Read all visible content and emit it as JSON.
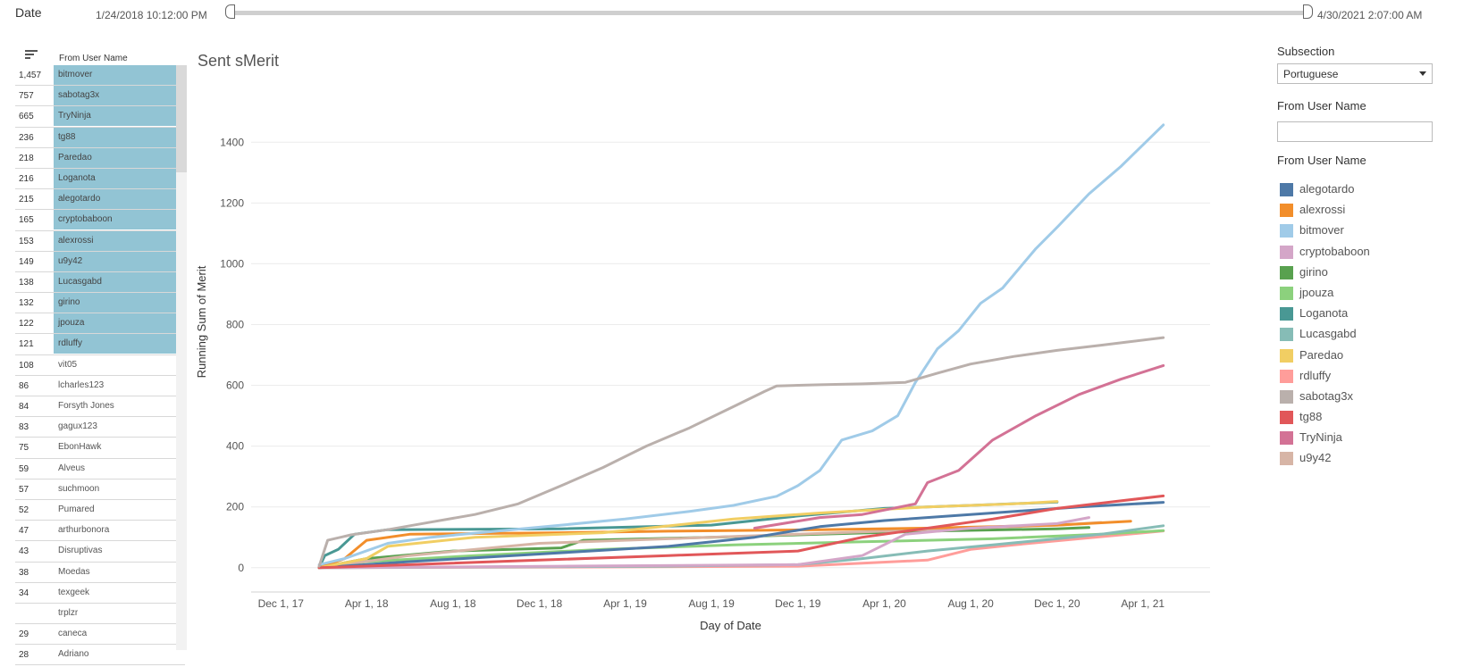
{
  "date_filter": {
    "label": "Date",
    "start": "1/24/2018 10:12:00 PM",
    "end": "4/30/2021 2:07:00 AM"
  },
  "table": {
    "header": "From User Name",
    "rows": [
      {
        "value": "1,457",
        "name": "bitmover",
        "highlighted": true
      },
      {
        "value": "757",
        "name": "sabotag3x",
        "highlighted": true
      },
      {
        "value": "665",
        "name": "TryNinja",
        "highlighted": true
      },
      {
        "value": "236",
        "name": "tg88",
        "highlighted": true
      },
      {
        "value": "218",
        "name": "Paredao",
        "highlighted": true
      },
      {
        "value": "216",
        "name": "Loganota",
        "highlighted": true
      },
      {
        "value": "215",
        "name": "alegotardo",
        "highlighted": true
      },
      {
        "value": "165",
        "name": "cryptobaboon",
        "highlighted": true
      },
      {
        "value": "153",
        "name": "alexrossi",
        "highlighted": true
      },
      {
        "value": "149",
        "name": "u9y42",
        "highlighted": true
      },
      {
        "value": "138",
        "name": "Lucasgabd",
        "highlighted": true
      },
      {
        "value": "132",
        "name": "girino",
        "highlighted": true
      },
      {
        "value": "122",
        "name": "jpouza",
        "highlighted": true
      },
      {
        "value": "121",
        "name": "rdluffy",
        "highlighted": true
      },
      {
        "value": "108",
        "name": "vit05",
        "highlighted": false
      },
      {
        "value": "86",
        "name": "lcharles123",
        "highlighted": false
      },
      {
        "value": "84",
        "name": "Forsyth Jones",
        "highlighted": false
      },
      {
        "value": "83",
        "name": "gagux123",
        "highlighted": false
      },
      {
        "value": "75",
        "name": "EbonHawk",
        "highlighted": false
      },
      {
        "value": "59",
        "name": "Alveus",
        "highlighted": false
      },
      {
        "value": "57",
        "name": "suchmoon",
        "highlighted": false
      },
      {
        "value": "52",
        "name": "Pumared",
        "highlighted": false
      },
      {
        "value": "47",
        "name": "arthurbonora",
        "highlighted": false
      },
      {
        "value": "43",
        "name": "Disruptivas",
        "highlighted": false
      },
      {
        "value": "38",
        "name": "Moedas",
        "highlighted": false
      },
      {
        "value": "34",
        "name": "texgeek",
        "highlighted": false
      },
      {
        "value": "",
        "name": "trplzr",
        "highlighted": false
      },
      {
        "value": "29",
        "name": "caneca",
        "highlighted": false
      },
      {
        "value": "28",
        "name": "Adriano",
        "highlighted": false
      }
    ]
  },
  "right_panel": {
    "subsection_label": "Subsection",
    "subsection_value": "Portuguese",
    "user_filter_label": "From User Name",
    "user_filter_value": "",
    "legend_title": "From User Name",
    "legend": [
      {
        "name": "alegotardo",
        "color": "#4e79a7"
      },
      {
        "name": "alexrossi",
        "color": "#f28e2b"
      },
      {
        "name": "bitmover",
        "color": "#a0cbe8"
      },
      {
        "name": "cryptobaboon",
        "color": "#d4a6c8"
      },
      {
        "name": "girino",
        "color": "#59a14f"
      },
      {
        "name": "jpouza",
        "color": "#8cd17d"
      },
      {
        "name": "Loganota",
        "color": "#499894"
      },
      {
        "name": "Lucasgabd",
        "color": "#86bcb6"
      },
      {
        "name": "Paredao",
        "color": "#f1ce63"
      },
      {
        "name": "rdluffy",
        "color": "#ff9d9a"
      },
      {
        "name": "sabotag3x",
        "color": "#bab0ac"
      },
      {
        "name": "tg88",
        "color": "#e15759"
      },
      {
        "name": "TryNinja",
        "color": "#d37295"
      },
      {
        "name": "u9y42",
        "color": "#d7b5a6"
      }
    ]
  },
  "chart_data": {
    "type": "line",
    "title": "Sent sMerit",
    "xlabel": "Day of Date",
    "ylabel": "Running Sum of Merit",
    "ylim": [
      -80,
      1580
    ],
    "yticks": [
      0,
      200,
      400,
      600,
      800,
      1000,
      1200,
      1400
    ],
    "xlim": [
      "2017-10-20",
      "2021-07-05"
    ],
    "xticks": [
      {
        "date": "2017-12-01",
        "label": "Dec 1, 17"
      },
      {
        "date": "2018-04-01",
        "label": "Apr 1, 18"
      },
      {
        "date": "2018-08-01",
        "label": "Aug 1, 18"
      },
      {
        "date": "2018-12-01",
        "label": "Dec 1, 18"
      },
      {
        "date": "2019-04-01",
        "label": "Apr 1, 19"
      },
      {
        "date": "2019-08-01",
        "label": "Aug 1, 19"
      },
      {
        "date": "2019-12-01",
        "label": "Dec 1, 19"
      },
      {
        "date": "2020-04-01",
        "label": "Apr 1, 20"
      },
      {
        "date": "2020-08-01",
        "label": "Aug 1, 20"
      },
      {
        "date": "2020-12-01",
        "label": "Dec 1, 20"
      },
      {
        "date": "2021-04-01",
        "label": "Apr 1, 21"
      }
    ],
    "grid": true,
    "legend_position": "right",
    "series": [
      {
        "name": "sabotag3x",
        "color": "#bab0ac",
        "points": [
          [
            "2018-01-24",
            5
          ],
          [
            "2018-02-05",
            90
          ],
          [
            "2018-03-10",
            108
          ],
          [
            "2018-05-01",
            125
          ],
          [
            "2018-07-01",
            150
          ],
          [
            "2018-09-01",
            175
          ],
          [
            "2018-11-01",
            210
          ],
          [
            "2019-01-01",
            270
          ],
          [
            "2019-03-01",
            330
          ],
          [
            "2019-05-01",
            400
          ],
          [
            "2019-07-01",
            460
          ],
          [
            "2019-09-01",
            530
          ],
          [
            "2019-10-15",
            580
          ],
          [
            "2019-11-01",
            598
          ],
          [
            "2020-01-01",
            602
          ],
          [
            "2020-03-01",
            605
          ],
          [
            "2020-05-01",
            610
          ],
          [
            "2020-06-15",
            640
          ],
          [
            "2020-08-01",
            670
          ],
          [
            "2020-10-01",
            695
          ],
          [
            "2020-12-01",
            715
          ],
          [
            "2021-02-01",
            732
          ],
          [
            "2021-04-30",
            757
          ]
        ]
      },
      {
        "name": "bitmover",
        "color": "#a0cbe8",
        "points": [
          [
            "2018-01-24",
            10
          ],
          [
            "2018-03-01",
            30
          ],
          [
            "2018-05-01",
            80
          ],
          [
            "2018-07-01",
            100
          ],
          [
            "2018-10-01",
            120
          ],
          [
            "2019-01-01",
            140
          ],
          [
            "2019-04-01",
            160
          ],
          [
            "2019-07-01",
            185
          ],
          [
            "2019-09-01",
            205
          ],
          [
            "2019-11-01",
            235
          ],
          [
            "2019-12-01",
            270
          ],
          [
            "2020-01-01",
            320
          ],
          [
            "2020-02-01",
            420
          ],
          [
            "2020-03-15",
            450
          ],
          [
            "2020-04-20",
            500
          ],
          [
            "2020-05-15",
            610
          ],
          [
            "2020-06-15",
            720
          ],
          [
            "2020-07-15",
            780
          ],
          [
            "2020-08-15",
            870
          ],
          [
            "2020-09-15",
            920
          ],
          [
            "2020-11-01",
            1050
          ],
          [
            "2020-12-01",
            1120
          ],
          [
            "2021-01-15",
            1230
          ],
          [
            "2021-03-01",
            1320
          ],
          [
            "2021-04-30",
            1457
          ]
        ]
      },
      {
        "name": "TryNinja",
        "color": "#d37295",
        "points": [
          [
            "2019-10-01",
            130
          ],
          [
            "2020-01-01",
            165
          ],
          [
            "2020-03-01",
            175
          ],
          [
            "2020-05-15",
            210
          ],
          [
            "2020-06-01",
            280
          ],
          [
            "2020-07-15",
            320
          ],
          [
            "2020-09-01",
            420
          ],
          [
            "2020-11-01",
            500
          ],
          [
            "2021-01-01",
            570
          ],
          [
            "2021-03-01",
            620
          ],
          [
            "2021-04-30",
            665
          ]
        ]
      },
      {
        "name": "tg88",
        "color": "#e15759",
        "points": [
          [
            "2018-01-24",
            0
          ],
          [
            "2018-06-01",
            10
          ],
          [
            "2018-12-01",
            25
          ],
          [
            "2019-06-01",
            40
          ],
          [
            "2019-12-01",
            55
          ],
          [
            "2020-03-01",
            100
          ],
          [
            "2020-06-01",
            130
          ],
          [
            "2020-09-01",
            160
          ],
          [
            "2020-12-01",
            195
          ],
          [
            "2021-03-01",
            220
          ],
          [
            "2021-04-30",
            236
          ]
        ]
      },
      {
        "name": "Paredao",
        "color": "#f1ce63",
        "points": [
          [
            "2018-01-24",
            0
          ],
          [
            "2018-04-01",
            30
          ],
          [
            "2018-05-01",
            70
          ],
          [
            "2018-09-01",
            100
          ],
          [
            "2019-03-01",
            115
          ],
          [
            "2019-09-01",
            160
          ],
          [
            "2020-01-01",
            180
          ],
          [
            "2020-06-01",
            200
          ],
          [
            "2020-10-01",
            210
          ],
          [
            "2020-12-01",
            218
          ]
        ]
      },
      {
        "name": "Loganota",
        "color": "#499894",
        "points": [
          [
            "2018-01-24",
            0
          ],
          [
            "2018-02-01",
            40
          ],
          [
            "2018-02-20",
            60
          ],
          [
            "2018-03-15",
            110
          ],
          [
            "2018-05-01",
            125
          ],
          [
            "2019-01-01",
            128
          ],
          [
            "2019-08-01",
            140
          ],
          [
            "2019-12-01",
            170
          ],
          [
            "2020-04-01",
            195
          ],
          [
            "2020-08-01",
            205
          ],
          [
            "2020-12-01",
            216
          ]
        ]
      },
      {
        "name": "alegotardo",
        "color": "#4e79a7",
        "points": [
          [
            "2018-01-24",
            0
          ],
          [
            "2018-06-01",
            20
          ],
          [
            "2018-12-01",
            45
          ],
          [
            "2019-06-01",
            70
          ],
          [
            "2019-10-01",
            100
          ],
          [
            "2020-01-01",
            135
          ],
          [
            "2020-04-01",
            155
          ],
          [
            "2020-09-01",
            180
          ],
          [
            "2021-01-01",
            200
          ],
          [
            "2021-04-30",
            215
          ]
        ]
      },
      {
        "name": "cryptobaboon",
        "color": "#d4a6c8",
        "points": [
          [
            "2018-01-24",
            0
          ],
          [
            "2019-01-01",
            5
          ],
          [
            "2019-12-01",
            10
          ],
          [
            "2020-03-01",
            40
          ],
          [
            "2020-05-01",
            110
          ],
          [
            "2020-08-01",
            130
          ],
          [
            "2020-12-01",
            145
          ],
          [
            "2021-01-15",
            165
          ]
        ]
      },
      {
        "name": "alexrossi",
        "color": "#f28e2b",
        "points": [
          [
            "2018-01-24",
            0
          ],
          [
            "2018-03-01",
            30
          ],
          [
            "2018-04-01",
            90
          ],
          [
            "2018-06-01",
            110
          ],
          [
            "2019-01-01",
            115
          ],
          [
            "2019-06-01",
            120
          ],
          [
            "2020-01-01",
            125
          ],
          [
            "2020-06-01",
            130
          ],
          [
            "2020-12-01",
            140
          ],
          [
            "2021-03-15",
            153
          ]
        ]
      },
      {
        "name": "u9y42",
        "color": "#d7b5a6",
        "points": [
          [
            "2018-01-24",
            0
          ],
          [
            "2018-06-01",
            40
          ],
          [
            "2018-12-01",
            80
          ],
          [
            "2019-06-01",
            95
          ],
          [
            "2019-12-01",
            110
          ],
          [
            "2020-06-01",
            125
          ],
          [
            "2020-12-01",
            140
          ],
          [
            "2021-02-01",
            149
          ]
        ]
      },
      {
        "name": "Lucasgabd",
        "color": "#86bcb6",
        "points": [
          [
            "2018-01-24",
            0
          ],
          [
            "2019-06-01",
            5
          ],
          [
            "2019-12-01",
            10
          ],
          [
            "2020-03-01",
            30
          ],
          [
            "2020-06-01",
            55
          ],
          [
            "2020-09-01",
            75
          ],
          [
            "2020-12-01",
            95
          ],
          [
            "2021-02-01",
            110
          ],
          [
            "2021-04-30",
            138
          ]
        ]
      },
      {
        "name": "girino",
        "color": "#59a14f",
        "points": [
          [
            "2018-01-24",
            0
          ],
          [
            "2018-04-01",
            30
          ],
          [
            "2018-08-01",
            55
          ],
          [
            "2019-01-01",
            65
          ],
          [
            "2019-02-01",
            90
          ],
          [
            "2019-08-01",
            100
          ],
          [
            "2020-01-01",
            110
          ],
          [
            "2020-06-01",
            120
          ],
          [
            "2020-12-01",
            128
          ],
          [
            "2021-01-15",
            132
          ]
        ]
      },
      {
        "name": "jpouza",
        "color": "#8cd17d",
        "points": [
          [
            "2018-01-24",
            0
          ],
          [
            "2018-04-01",
            20
          ],
          [
            "2018-09-01",
            40
          ],
          [
            "2019-03-01",
            60
          ],
          [
            "2019-09-01",
            75
          ],
          [
            "2020-03-01",
            85
          ],
          [
            "2020-09-01",
            95
          ],
          [
            "2021-02-01",
            110
          ],
          [
            "2021-04-30",
            122
          ]
        ]
      },
      {
        "name": "rdluffy",
        "color": "#ff9d9a",
        "points": [
          [
            "2018-01-24",
            0
          ],
          [
            "2019-01-01",
            2
          ],
          [
            "2019-12-01",
            5
          ],
          [
            "2020-03-01",
            15
          ],
          [
            "2020-06-01",
            25
          ],
          [
            "2020-08-01",
            60
          ],
          [
            "2020-10-01",
            75
          ],
          [
            "2021-01-01",
            95
          ],
          [
            "2021-04-30",
            121
          ]
        ]
      }
    ]
  }
}
